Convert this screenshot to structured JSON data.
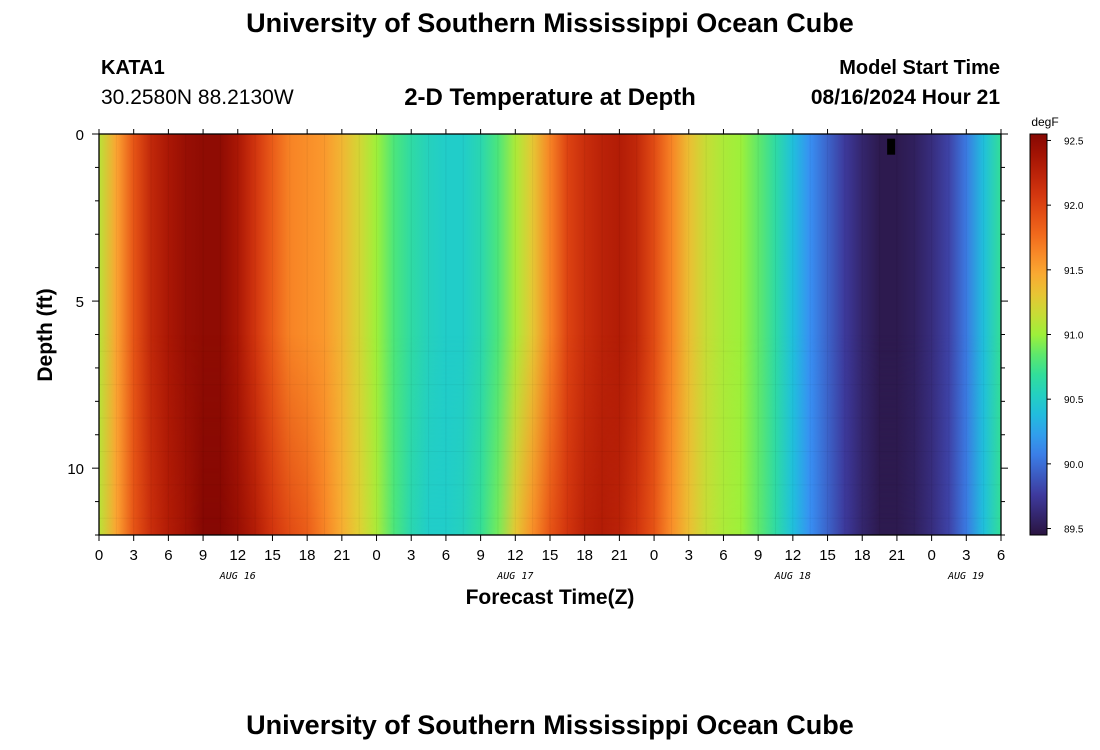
{
  "header": {
    "title": "University of Southern Mississippi Ocean Cube",
    "footer_title": "University of Southern Mississippi Ocean Cube",
    "station_id": "KATA1",
    "station_coords": "30.2580N  88.2130W",
    "model_start_label": "Model Start Time",
    "model_start_value": "08/16/2024 Hour 21"
  },
  "chart_data": {
    "type": "heatmap",
    "title": "2-D Temperature at Depth",
    "xlabel": "Forecast Time(Z)",
    "ylabel": "Depth (ft)",
    "x_tick_labels": [
      "0",
      "3",
      "6",
      "9",
      "12",
      "15",
      "18",
      "21",
      "0",
      "3",
      "6",
      "9",
      "12",
      "15",
      "18",
      "21",
      "0",
      "3",
      "6",
      "9",
      "12",
      "15",
      "18",
      "21",
      "0",
      "3",
      "6"
    ],
    "date_labels": [
      "AUG 16",
      "AUG 17",
      "AUG 18",
      "AUG 19"
    ],
    "x_range_hours": [
      0,
      78
    ],
    "y_ticks": [
      0,
      5,
      10
    ],
    "ylim": [
      0,
      12
    ],
    "y_inverted": true,
    "colorbar": {
      "unit": "degF",
      "ticks": [
        "92.5",
        "92.0",
        "91.5",
        "91.0",
        "90.5",
        "90.0",
        "89.5"
      ],
      "range": [
        89.45,
        92.55
      ]
    },
    "marker": {
      "hour": 68.5,
      "depth": 0.35
    },
    "surface_profile": [
      {
        "hour": 0,
        "temp": 91.1
      },
      {
        "hour": 1.5,
        "temp": 91.5
      },
      {
        "hour": 3,
        "temp": 91.9
      },
      {
        "hour": 4.5,
        "temp": 92.2
      },
      {
        "hour": 6,
        "temp": 92.35
      },
      {
        "hour": 7.5,
        "temp": 92.45
      },
      {
        "hour": 9,
        "temp": 92.5
      },
      {
        "hour": 10.5,
        "temp": 92.5
      },
      {
        "hour": 12,
        "temp": 92.35
      },
      {
        "hour": 13.5,
        "temp": 92.1
      },
      {
        "hour": 15,
        "temp": 91.85
      },
      {
        "hour": 16.5,
        "temp": 91.65
      },
      {
        "hour": 18,
        "temp": 91.6
      },
      {
        "hour": 19.5,
        "temp": 91.55
      },
      {
        "hour": 21,
        "temp": 91.4
      },
      {
        "hour": 22.5,
        "temp": 91.2
      },
      {
        "hour": 24,
        "temp": 91.0
      },
      {
        "hour": 25.5,
        "temp": 90.8
      },
      {
        "hour": 27,
        "temp": 90.65
      },
      {
        "hour": 28.5,
        "temp": 90.55
      },
      {
        "hour": 30,
        "temp": 90.5
      },
      {
        "hour": 31.5,
        "temp": 90.5
      },
      {
        "hour": 33,
        "temp": 90.6
      },
      {
        "hour": 34.5,
        "temp": 90.8
      },
      {
        "hour": 36,
        "temp": 91.05
      },
      {
        "hour": 37.5,
        "temp": 91.3
      },
      {
        "hour": 39,
        "temp": 91.65
      },
      {
        "hour": 40.5,
        "temp": 92.0
      },
      {
        "hour": 42,
        "temp": 92.15
      },
      {
        "hour": 43.5,
        "temp": 92.25
      },
      {
        "hour": 45,
        "temp": 92.3
      },
      {
        "hour": 46.5,
        "temp": 92.2
      },
      {
        "hour": 48,
        "temp": 91.95
      },
      {
        "hour": 49.5,
        "temp": 91.65
      },
      {
        "hour": 51,
        "temp": 91.35
      },
      {
        "hour": 52.5,
        "temp": 91.15
      },
      {
        "hour": 54,
        "temp": 91.05
      },
      {
        "hour": 55.5,
        "temp": 91.0
      },
      {
        "hour": 57,
        "temp": 90.85
      },
      {
        "hour": 58.5,
        "temp": 90.65
      },
      {
        "hour": 60,
        "temp": 90.4
      },
      {
        "hour": 61.5,
        "temp": 90.15
      },
      {
        "hour": 63,
        "temp": 89.95
      },
      {
        "hour": 64.5,
        "temp": 89.75
      },
      {
        "hour": 66,
        "temp": 89.6
      },
      {
        "hour": 67.5,
        "temp": 89.5
      },
      {
        "hour": 69,
        "temp": 89.5
      },
      {
        "hour": 70.5,
        "temp": 89.55
      },
      {
        "hour": 72,
        "temp": 89.65
      },
      {
        "hour": 73.5,
        "temp": 89.8
      },
      {
        "hour": 75,
        "temp": 90.05
      },
      {
        "hour": 76.5,
        "temp": 90.4
      },
      {
        "hour": 78,
        "temp": 90.7
      }
    ],
    "deep_profile": [
      {
        "hour": 0,
        "temp": 91.1
      },
      {
        "hour": 1.5,
        "temp": 91.5
      },
      {
        "hour": 3,
        "temp": 91.9
      },
      {
        "hour": 4.5,
        "temp": 92.15
      },
      {
        "hour": 6,
        "temp": 92.3
      },
      {
        "hour": 7.5,
        "temp": 92.4
      },
      {
        "hour": 9,
        "temp": 92.55
      },
      {
        "hour": 10.5,
        "temp": 92.55
      },
      {
        "hour": 12,
        "temp": 92.45
      },
      {
        "hour": 13.5,
        "temp": 92.3
      },
      {
        "hour": 15,
        "temp": 92.1
      },
      {
        "hour": 16.5,
        "temp": 91.95
      },
      {
        "hour": 18,
        "temp": 91.85
      },
      {
        "hour": 19.5,
        "temp": 91.65
      },
      {
        "hour": 21,
        "temp": 91.45
      },
      {
        "hour": 22.5,
        "temp": 91.25
      },
      {
        "hour": 24,
        "temp": 91.05
      },
      {
        "hour": 25.5,
        "temp": 90.8
      },
      {
        "hour": 27,
        "temp": 90.6
      },
      {
        "hour": 28.5,
        "temp": 90.5
      },
      {
        "hour": 30,
        "temp": 90.5
      },
      {
        "hour": 31.5,
        "temp": 90.55
      },
      {
        "hour": 33,
        "temp": 90.7
      },
      {
        "hour": 34.5,
        "temp": 90.9
      },
      {
        "hour": 36,
        "temp": 91.3
      },
      {
        "hour": 37.5,
        "temp": 91.6
      },
      {
        "hour": 39,
        "temp": 91.9
      },
      {
        "hour": 40.5,
        "temp": 92.1
      },
      {
        "hour": 42,
        "temp": 92.25
      },
      {
        "hour": 43.5,
        "temp": 92.3
      },
      {
        "hour": 45,
        "temp": 92.25
      },
      {
        "hour": 46.5,
        "temp": 92.1
      },
      {
        "hour": 48,
        "temp": 91.9
      },
      {
        "hour": 49.5,
        "temp": 91.6
      },
      {
        "hour": 51,
        "temp": 91.35
      },
      {
        "hour": 52.5,
        "temp": 91.15
      },
      {
        "hour": 54,
        "temp": 91.05
      },
      {
        "hour": 55.5,
        "temp": 91.0
      },
      {
        "hour": 57,
        "temp": 90.85
      },
      {
        "hour": 58.5,
        "temp": 90.65
      },
      {
        "hour": 60,
        "temp": 90.4
      },
      {
        "hour": 61.5,
        "temp": 90.15
      },
      {
        "hour": 63,
        "temp": 89.95
      },
      {
        "hour": 64.5,
        "temp": 89.75
      },
      {
        "hour": 66,
        "temp": 89.6
      },
      {
        "hour": 67.5,
        "temp": 89.5
      },
      {
        "hour": 69,
        "temp": 89.5
      },
      {
        "hour": 70.5,
        "temp": 89.55
      },
      {
        "hour": 72,
        "temp": 89.65
      },
      {
        "hour": 73.5,
        "temp": 89.8
      },
      {
        "hour": 75,
        "temp": 90.05
      },
      {
        "hour": 76.5,
        "temp": 90.4
      },
      {
        "hour": 78,
        "temp": 90.7
      }
    ]
  }
}
